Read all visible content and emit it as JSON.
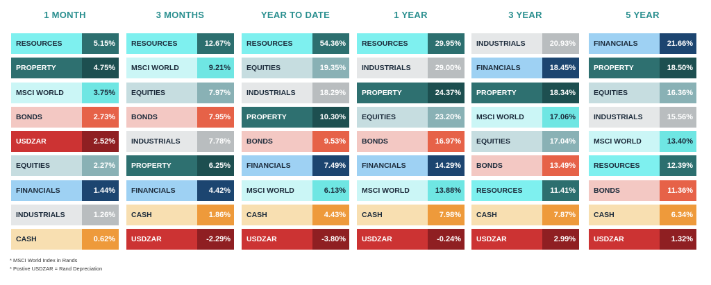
{
  "footnotes": [
    "* MSCI World Index in  Rands",
    "* Postive USDZAR = Rand Depreciation"
  ],
  "colors": {
    "RESOURCES": {
      "bg": "#7ef0ef",
      "val": "#2c6f6f",
      "fg": "#1b2a3a",
      "vfg": "#ffffff"
    },
    "PROPERTY": {
      "bg": "#2e7070",
      "val": "#1d4f50",
      "fg": "#ffffff",
      "vfg": "#ffffff"
    },
    "MSCI WORLD": {
      "bg": "#cbf6f6",
      "val": "#6fe6e3",
      "fg": "#1b2a3a",
      "vfg": "#1b2a3a"
    },
    "BONDS": {
      "bg": "#f3c8c3",
      "val": "#e66248",
      "fg": "#1b2a3a",
      "vfg": "#ffffff"
    },
    "USDZAR": {
      "bg": "#cc3333",
      "val": "#8f1f22",
      "fg": "#ffffff",
      "vfg": "#ffffff"
    },
    "EQUITIES": {
      "bg": "#c6dde0",
      "val": "#89b1b5",
      "fg": "#1b2a3a",
      "vfg": "#ffffff"
    },
    "FINANCIALS": {
      "bg": "#9ed1f3",
      "val": "#1c4570",
      "fg": "#1b2a3a",
      "vfg": "#ffffff"
    },
    "INDUSTRIALS": {
      "bg": "#e5e7e8",
      "val": "#b9bdbf",
      "fg": "#1b2a3a",
      "vfg": "#ffffff"
    },
    "CASH": {
      "bg": "#f8dfb1",
      "val": "#ee9a3b",
      "fg": "#1b2a3a",
      "vfg": "#ffffff"
    }
  },
  "chart_data": {
    "type": "table",
    "columns": [
      {
        "title": "1 MONTH",
        "rows": [
          {
            "label": "RESOURCES",
            "value": "5.15%"
          },
          {
            "label": "PROPERTY",
            "value": "4.75%"
          },
          {
            "label": "MSCI WORLD",
            "value": "3.75%"
          },
          {
            "label": "BONDS",
            "value": "2.73%"
          },
          {
            "label": "USDZAR",
            "value": "2.52%"
          },
          {
            "label": "EQUITIES",
            "value": "2.27%"
          },
          {
            "label": "FINANCIALS",
            "value": "1.44%"
          },
          {
            "label": "INDUSTRIALS",
            "value": "1.26%"
          },
          {
            "label": "CASH",
            "value": "0.62%"
          }
        ]
      },
      {
        "title": "3 MONTHS",
        "rows": [
          {
            "label": "RESOURCES",
            "value": "12.67%"
          },
          {
            "label": "MSCI WORLD",
            "value": "9.21%"
          },
          {
            "label": "EQUITIES",
            "value": "7.97%"
          },
          {
            "label": "BONDS",
            "value": "7.95%"
          },
          {
            "label": "INDUSTRIALS",
            "value": "7.78%"
          },
          {
            "label": "PROPERTY",
            "value": "6.25%"
          },
          {
            "label": "FINANCIALS",
            "value": "4.42%"
          },
          {
            "label": "CASH",
            "value": "1.86%"
          },
          {
            "label": "USDZAR",
            "value": "-2.29%"
          }
        ]
      },
      {
        "title": "YEAR TO DATE",
        "rows": [
          {
            "label": "RESOURCES",
            "value": "54.36%"
          },
          {
            "label": "EQUITIES",
            "value": "19.35%"
          },
          {
            "label": "INDUSTRIALS",
            "value": "18.29%"
          },
          {
            "label": "PROPERTY",
            "value": "10.30%"
          },
          {
            "label": "BONDS",
            "value": "9.53%"
          },
          {
            "label": "FINANCIALS",
            "value": "7.49%"
          },
          {
            "label": "MSCI WORLD",
            "value": "6.13%"
          },
          {
            "label": "CASH",
            "value": "4.43%"
          },
          {
            "label": "USDZAR",
            "value": "-3.80%"
          }
        ]
      },
      {
        "title": "1 YEAR",
        "rows": [
          {
            "label": "RESOURCES",
            "value": "29.95%"
          },
          {
            "label": "INDUSTRIALS",
            "value": "29.00%"
          },
          {
            "label": "PROPERTY",
            "value": "24.37%"
          },
          {
            "label": "EQUITIES",
            "value": "23.20%"
          },
          {
            "label": "BONDS",
            "value": "16.97%"
          },
          {
            "label": "FINANCIALS",
            "value": "14.29%"
          },
          {
            "label": "MSCI WORLD",
            "value": "13.88%"
          },
          {
            "label": "CASH",
            "value": "7.98%"
          },
          {
            "label": "USDZAR",
            "value": "-0.24%"
          }
        ]
      },
      {
        "title": "3 YEAR",
        "rows": [
          {
            "label": "INDUSTRIALS",
            "value": "20.93%"
          },
          {
            "label": "FINANCIALS",
            "value": "18.45%"
          },
          {
            "label": "PROPERTY",
            "value": "18.34%"
          },
          {
            "label": "MSCI WORLD",
            "value": "17.06%"
          },
          {
            "label": "EQUITIES",
            "value": "17.04%"
          },
          {
            "label": "BONDS",
            "value": "13.49%"
          },
          {
            "label": "RESOURCES",
            "value": "11.41%"
          },
          {
            "label": "CASH",
            "value": "7.87%"
          },
          {
            "label": "USDZAR",
            "value": "2.99%"
          }
        ]
      },
      {
        "title": "5 YEAR",
        "rows": [
          {
            "label": "FINANCIALS",
            "value": "21.66%"
          },
          {
            "label": "PROPERTY",
            "value": "18.50%"
          },
          {
            "label": "EQUITIES",
            "value": "16.36%"
          },
          {
            "label": "INDUSTRIALS",
            "value": "15.56%"
          },
          {
            "label": "MSCI WORLD",
            "value": "13.40%"
          },
          {
            "label": "RESOURCES",
            "value": "12.39%"
          },
          {
            "label": "BONDS",
            "value": "11.36%"
          },
          {
            "label": "CASH",
            "value": "6.34%"
          },
          {
            "label": "USDZAR",
            "value": "1.32%"
          }
        ]
      }
    ]
  }
}
